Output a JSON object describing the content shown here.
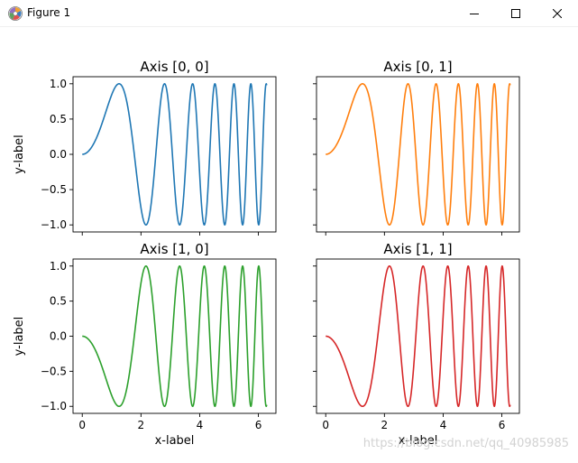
{
  "window": {
    "title": "Figure 1",
    "controls": [
      "minimize-icon",
      "maximize-icon",
      "close-icon"
    ]
  },
  "watermark": "https://blog.csdn.net/qq_40985985",
  "colors": {
    "background": "#ffffff",
    "axis": "#000000",
    "series": [
      "#1f77b4",
      "#ff7f0e",
      "#2ca02c",
      "#d62728"
    ]
  },
  "chart_data": [
    {
      "type": "line",
      "title": "Axis [0, 0]",
      "function": "sin(x^2)",
      "x_range": [
        0,
        6.283
      ],
      "xlim": [
        -0.314,
        6.597
      ],
      "ylim": [
        -1.1,
        1.1
      ],
      "xticks": [
        0,
        2,
        4,
        6
      ],
      "xtick_labels_visible": false,
      "yticks": [
        -1.0,
        -0.5,
        0.0,
        0.5,
        1.0
      ],
      "ytick_labels": [
        "−1.0",
        "−0.5",
        "0.0",
        "0.5",
        "1.0"
      ],
      "ytick_labels_visible": true,
      "xlabel": "",
      "ylabel": "y-label",
      "color": "#1f77b4",
      "series": [
        {
          "name": "",
          "values": "sin(x^2)"
        }
      ]
    },
    {
      "type": "line",
      "title": "Axis [0, 1]",
      "function": "sin(x^2)",
      "x_range": [
        0,
        6.283
      ],
      "xlim": [
        -0.314,
        6.597
      ],
      "ylim": [
        -1.1,
        1.1
      ],
      "xticks": [
        0,
        2,
        4,
        6
      ],
      "xtick_labels_visible": false,
      "yticks": [
        -1.0,
        -0.5,
        0.0,
        0.5,
        1.0
      ],
      "ytick_labels_visible": false,
      "xlabel": "",
      "ylabel": "",
      "color": "#ff7f0e",
      "series": [
        {
          "name": "",
          "values": "sin(x^2)"
        }
      ]
    },
    {
      "type": "line",
      "title": "Axis [1, 0]",
      "function": "-sin(x^2)",
      "x_range": [
        0,
        6.283
      ],
      "xlim": [
        -0.314,
        6.597
      ],
      "ylim": [
        -1.1,
        1.1
      ],
      "xticks": [
        0,
        2,
        4,
        6
      ],
      "xtick_labels": [
        "0",
        "2",
        "4",
        "6"
      ],
      "xtick_labels_visible": true,
      "yticks": [
        -1.0,
        -0.5,
        0.0,
        0.5,
        1.0
      ],
      "ytick_labels": [
        "−1.0",
        "−0.5",
        "0.0",
        "0.5",
        "1.0"
      ],
      "ytick_labels_visible": true,
      "xlabel": "x-label",
      "ylabel": "y-label",
      "color": "#2ca02c",
      "series": [
        {
          "name": "",
          "values": "-sin(x^2)"
        }
      ]
    },
    {
      "type": "line",
      "title": "Axis [1, 1]",
      "function": "-sin(x^2)",
      "x_range": [
        0,
        6.283
      ],
      "xlim": [
        -0.314,
        6.597
      ],
      "ylim": [
        -1.1,
        1.1
      ],
      "xticks": [
        0,
        2,
        4,
        6
      ],
      "xtick_labels": [
        "0",
        "2",
        "4",
        "6"
      ],
      "xtick_labels_visible": true,
      "yticks": [
        -1.0,
        -0.5,
        0.0,
        0.5,
        1.0
      ],
      "ytick_labels_visible": false,
      "xlabel": "x-label",
      "ylabel": "",
      "color": "#d62728",
      "series": [
        {
          "name": "",
          "values": "-sin(x^2)"
        }
      ]
    }
  ]
}
